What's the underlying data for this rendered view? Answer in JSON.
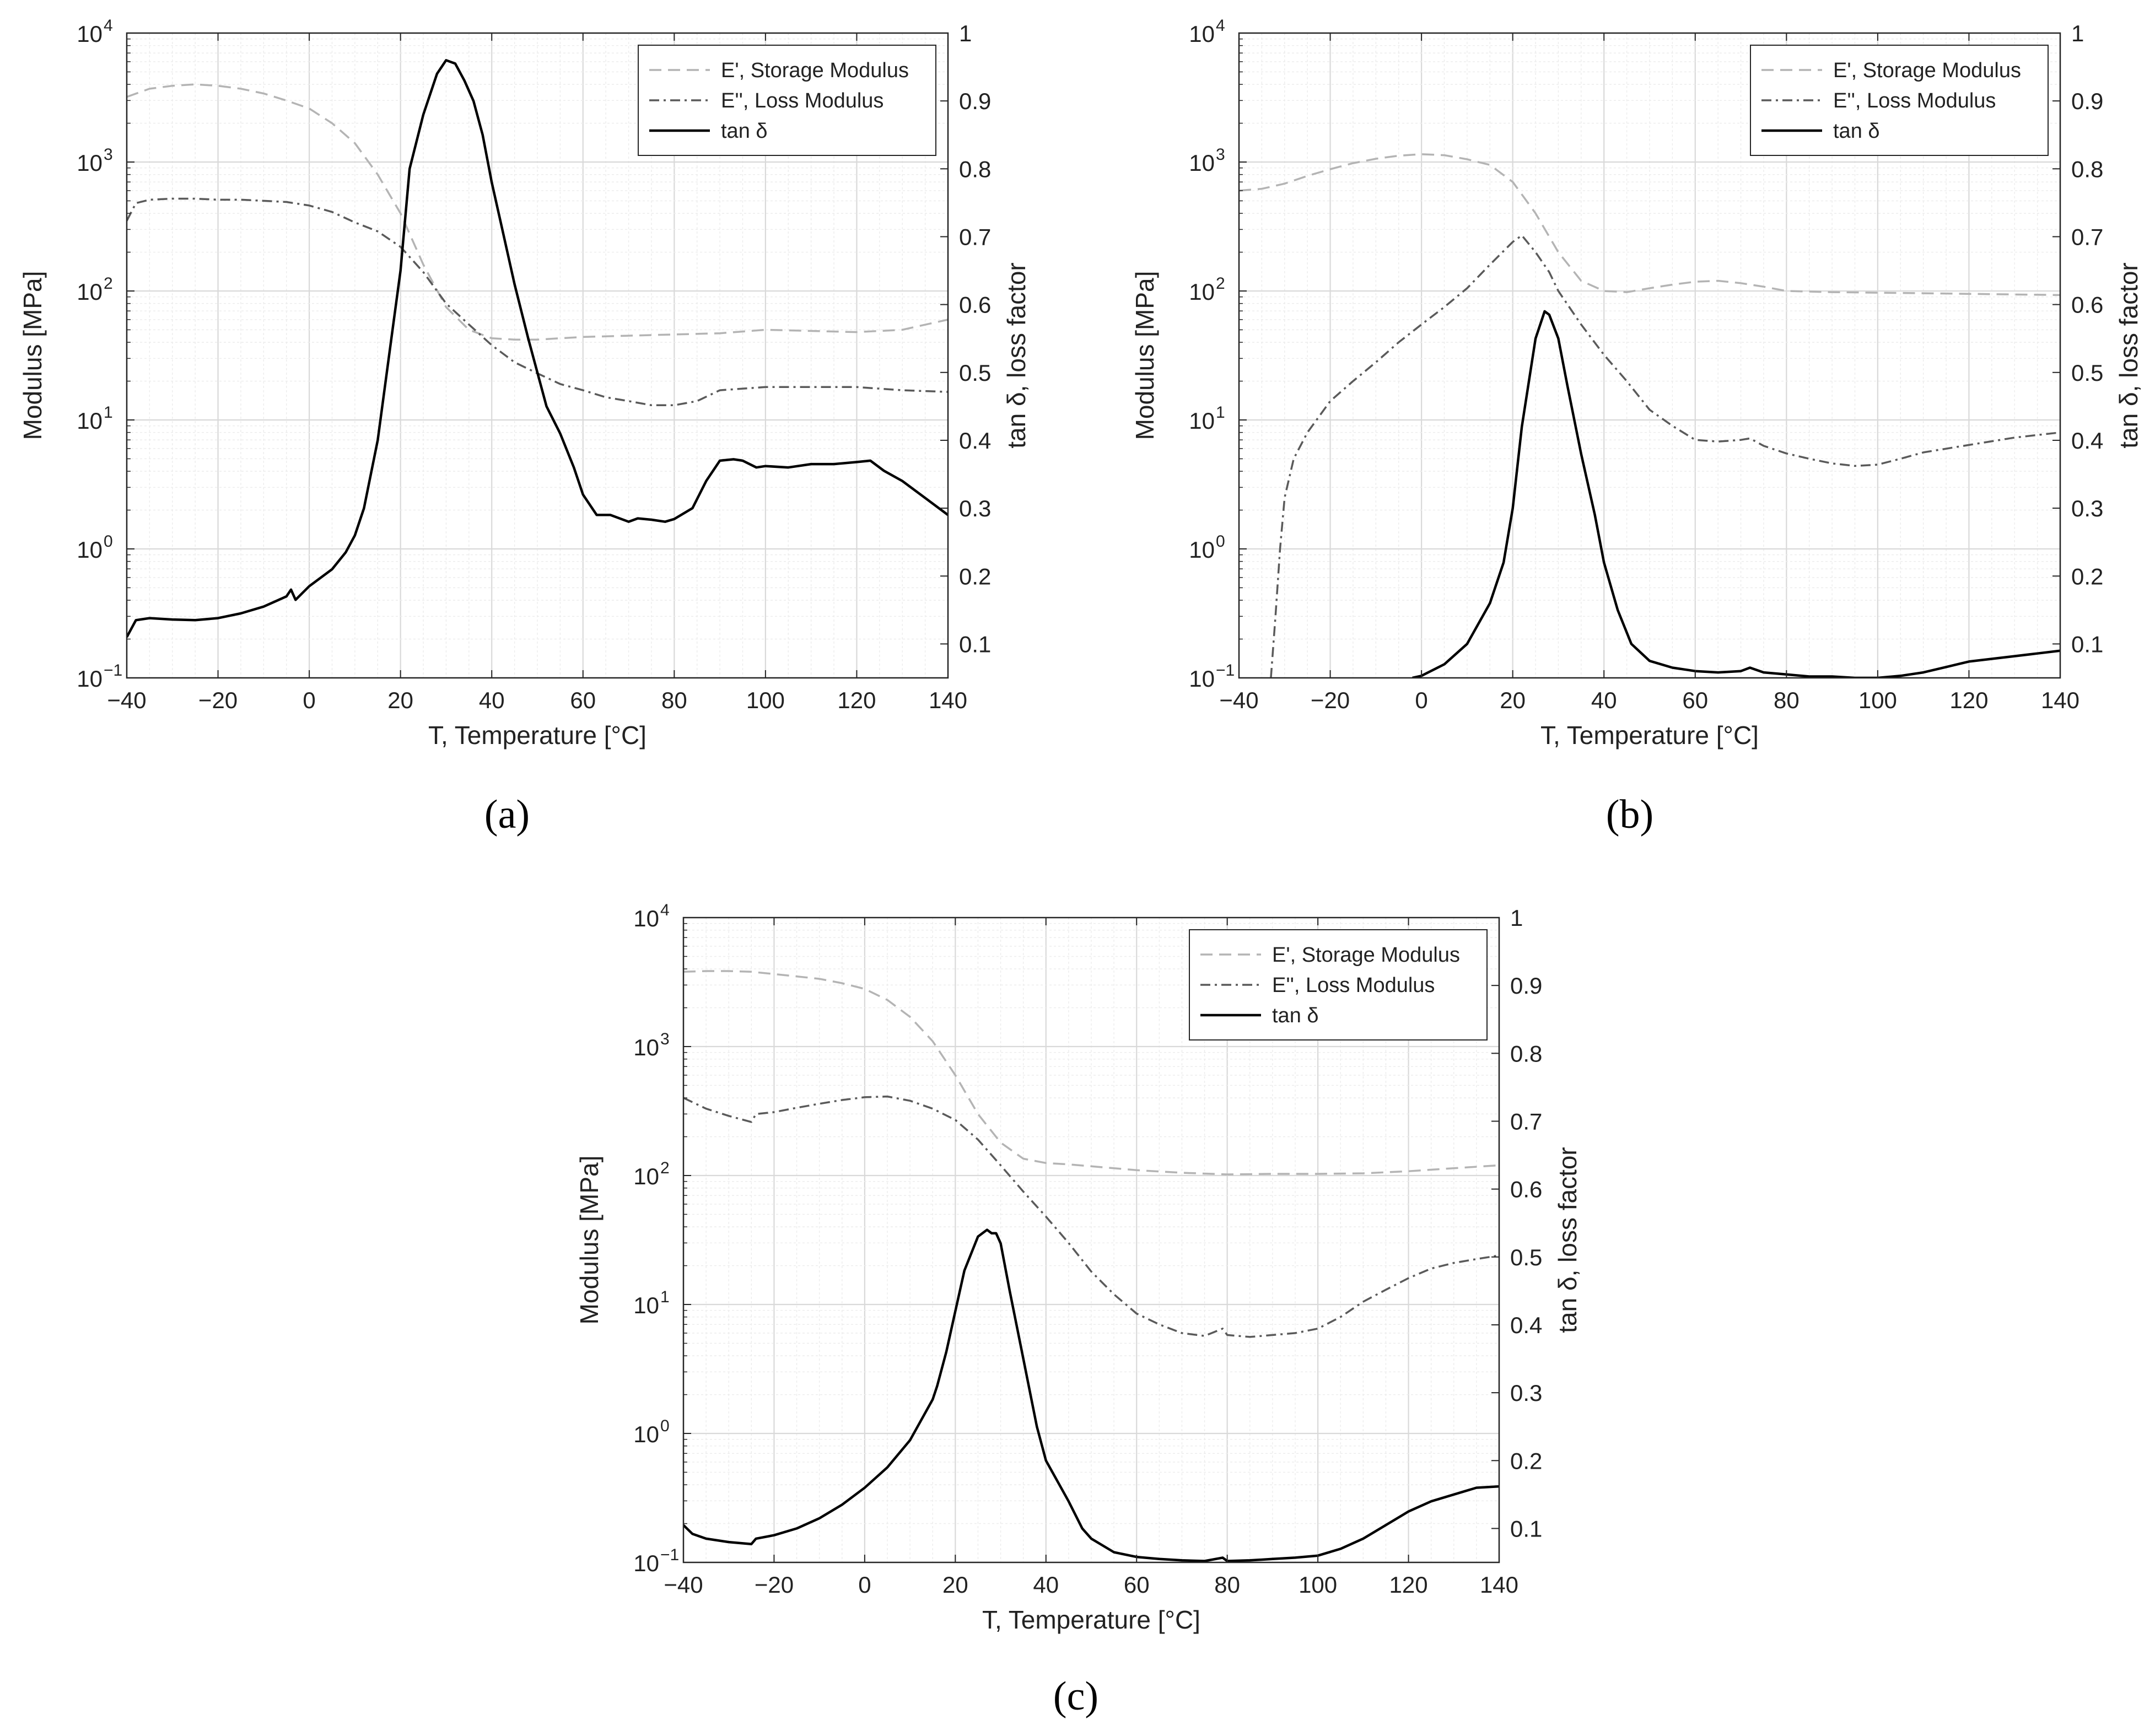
{
  "figure": {
    "subfigure_labels": [
      "(a)",
      "(b)",
      "(c)"
    ]
  },
  "colors": {
    "storage": "#b4b4b4",
    "loss": "#5a5a5a",
    "tan": "#000000",
    "grid_major": "#d9d9d9",
    "grid_minor": "#ececec",
    "axis": "#262626"
  },
  "chart_data": [
    {
      "id": "a",
      "type": "line",
      "label": "(a)",
      "xlabel": "T, Temperature [°C]",
      "ylabel": "Modulus [MPa]",
      "y2label": "tan δ, loss factor",
      "xlim": [
        -40,
        140
      ],
      "ylim": [
        0.1,
        10000
      ],
      "yscale": "log",
      "y2lim": [
        0.05,
        1
      ],
      "xticks": [
        "−40",
        "−20",
        "0",
        "20",
        "40",
        "60",
        "80",
        "100",
        "120",
        "140"
      ],
      "yticks": [
        "10",
        "10",
        "10",
        "10",
        "10",
        "10"
      ],
      "yticks_exp": [
        "−1",
        "0",
        "1",
        "2",
        "3",
        "4"
      ],
      "y2ticks": [
        "0.1",
        "0.2",
        "0.3",
        "0.4",
        "0.5",
        "0.6",
        "0.7",
        "0.8",
        "0.9",
        "1"
      ],
      "legend": [
        "E', Storage Modulus",
        "E'', Loss Modulus",
        "tan δ"
      ],
      "legend_position": "top-right",
      "grid": true,
      "series": [
        {
          "name": "E', Storage Modulus",
          "axis": "left",
          "style": "dashed",
          "x": [
            -40,
            -35,
            -30,
            -25,
            -20,
            -15,
            -10,
            -5,
            0,
            5,
            10,
            15,
            20,
            25,
            30,
            35,
            40,
            45,
            50,
            60,
            70,
            80,
            90,
            100,
            110,
            120,
            130,
            140
          ],
          "y": [
            3200,
            3700,
            3900,
            4000,
            3900,
            3700,
            3400,
            3000,
            2600,
            2000,
            1400,
            800,
            400,
            160,
            75,
            50,
            43,
            42,
            42,
            44,
            45,
            46,
            47,
            50,
            49,
            48,
            50,
            60
          ]
        },
        {
          "name": "E'', Loss Modulus",
          "axis": "left",
          "style": "dashdot",
          "x": [
            -40,
            -38,
            -35,
            -30,
            -25,
            -20,
            -15,
            -10,
            -5,
            0,
            5,
            10,
            15,
            20,
            25,
            30,
            35,
            40,
            45,
            50,
            55,
            60,
            65,
            70,
            75,
            80,
            85,
            90,
            100,
            110,
            120,
            130,
            140
          ],
          "y": [
            350,
            480,
            510,
            520,
            520,
            510,
            510,
            500,
            490,
            460,
            410,
            340,
            290,
            220,
            140,
            80,
            55,
            38,
            28,
            23,
            19,
            17,
            15,
            14,
            13,
            13,
            14,
            17,
            18,
            18,
            18,
            17,
            16.5
          ]
        },
        {
          "name": "tan δ",
          "axis": "right",
          "style": "solid",
          "x": [
            -40,
            -38,
            -35,
            -30,
            -25,
            -20,
            -15,
            -10,
            -5,
            -4,
            -3,
            0,
            5,
            8,
            10,
            12,
            15,
            18,
            20,
            22,
            25,
            28,
            30,
            32,
            34,
            36,
            38,
            40,
            42,
            45,
            48,
            50,
            52,
            55,
            58,
            60,
            63,
            66,
            70,
            72,
            75,
            78,
            80,
            84,
            87,
            90,
            93,
            95,
            98,
            100,
            105,
            110,
            115,
            120,
            123,
            126,
            130,
            135,
            140
          ],
          "y": [
            0.11,
            0.135,
            0.138,
            0.136,
            0.135,
            0.138,
            0.145,
            0.155,
            0.17,
            0.18,
            0.165,
            0.185,
            0.21,
            0.235,
            0.26,
            0.3,
            0.4,
            0.55,
            0.65,
            0.8,
            0.88,
            0.94,
            0.96,
            0.955,
            0.93,
            0.9,
            0.85,
            0.78,
            0.72,
            0.63,
            0.55,
            0.5,
            0.45,
            0.41,
            0.36,
            0.32,
            0.29,
            0.29,
            0.28,
            0.285,
            0.283,
            0.28,
            0.284,
            0.3,
            0.34,
            0.37,
            0.372,
            0.37,
            0.36,
            0.362,
            0.36,
            0.365,
            0.365,
            0.368,
            0.37,
            0.355,
            0.34,
            0.315,
            0.29
          ]
        }
      ]
    },
    {
      "id": "b",
      "type": "line",
      "label": "(b)",
      "xlabel": "T, Temperature [°C]",
      "ylabel": "Modulus [MPa]",
      "y2label": "tan δ, loss factor",
      "xlim": [
        -40,
        140
      ],
      "ylim": [
        0.1,
        10000
      ],
      "yscale": "log",
      "y2lim": [
        0.05,
        1
      ],
      "xticks": [
        "−40",
        "−20",
        "0",
        "20",
        "40",
        "60",
        "80",
        "100",
        "120",
        "140"
      ],
      "yticks": [
        "10",
        "10",
        "10",
        "10",
        "10",
        "10"
      ],
      "yticks_exp": [
        "−1",
        "0",
        "1",
        "2",
        "3",
        "4"
      ],
      "y2ticks": [
        "0.1",
        "0.2",
        "0.3",
        "0.4",
        "0.5",
        "0.6",
        "0.7",
        "0.8",
        "0.9",
        "1"
      ],
      "legend": [
        "E', Storage Modulus",
        "E'', Loss Modulus",
        "tan δ"
      ],
      "legend_position": "top-right",
      "grid": true,
      "series": [
        {
          "name": "E', Storage Modulus",
          "axis": "left",
          "style": "dashed",
          "x": [
            -40,
            -35,
            -30,
            -25,
            -20,
            -15,
            -10,
            -5,
            0,
            5,
            10,
            15,
            20,
            25,
            30,
            35,
            40,
            45,
            50,
            55,
            60,
            65,
            70,
            75,
            80,
            90,
            100,
            110,
            120,
            130,
            140
          ],
          "y": [
            600,
            620,
            680,
            780,
            880,
            980,
            1060,
            1120,
            1150,
            1130,
            1050,
            950,
            700,
            400,
            200,
            120,
            100,
            98,
            105,
            112,
            118,
            120,
            115,
            108,
            100,
            98,
            97,
            96,
            95,
            94,
            93
          ]
        },
        {
          "name": "E'', Loss Modulus",
          "axis": "left",
          "style": "dashdot",
          "x": [
            -33,
            -32,
            -31,
            -30,
            -28,
            -25,
            -20,
            -15,
            -10,
            -5,
            0,
            5,
            10,
            15,
            20,
            22,
            25,
            28,
            30,
            35,
            40,
            45,
            50,
            55,
            60,
            65,
            70,
            72,
            75,
            80,
            85,
            90,
            95,
            100,
            105,
            110,
            120,
            130,
            140
          ],
          "y": [
            0.1,
            0.3,
            1,
            2.5,
            5,
            8,
            14,
            20,
            28,
            40,
            55,
            75,
            105,
            160,
            240,
            270,
            200,
            140,
            100,
            55,
            32,
            20,
            12,
            9,
            7,
            6.8,
            7,
            7.2,
            6.3,
            5.5,
            5,
            4.6,
            4.4,
            4.5,
            5,
            5.6,
            6.4,
            7.3,
            8
          ]
        },
        {
          "name": "tan δ",
          "axis": "right",
          "style": "solid",
          "x": [
            -2,
            0,
            5,
            10,
            15,
            18,
            20,
            22,
            25,
            27,
            28,
            30,
            32,
            35,
            38,
            40,
            43,
            46,
            50,
            55,
            60,
            65,
            70,
            72,
            75,
            80,
            85,
            90,
            95,
            100,
            105,
            110,
            115,
            120,
            125,
            130,
            135,
            140
          ],
          "y": [
            0.05,
            0.053,
            0.07,
            0.1,
            0.16,
            0.22,
            0.3,
            0.42,
            0.55,
            0.59,
            0.585,
            0.55,
            0.48,
            0.38,
            0.29,
            0.22,
            0.15,
            0.1,
            0.075,
            0.065,
            0.06,
            0.058,
            0.06,
            0.065,
            0.058,
            0.055,
            0.052,
            0.052,
            0.05,
            0.05,
            0.053,
            0.058,
            0.066,
            0.074,
            0.078,
            0.082,
            0.086,
            0.09
          ]
        }
      ]
    },
    {
      "id": "c",
      "type": "line",
      "label": "(c)",
      "xlabel": "T, Temperature [°C]",
      "ylabel": "Modulus [MPa]",
      "y2label": "tan δ, loss factor",
      "xlim": [
        -40,
        140
      ],
      "ylim": [
        0.1,
        10000
      ],
      "yscale": "log",
      "y2lim": [
        0.05,
        1
      ],
      "xticks": [
        "−40",
        "−20",
        "0",
        "20",
        "40",
        "60",
        "80",
        "100",
        "120",
        "140"
      ],
      "yticks": [
        "10",
        "10",
        "10",
        "10",
        "10",
        "10"
      ],
      "yticks_exp": [
        "−1",
        "0",
        "1",
        "2",
        "3",
        "4"
      ],
      "y2ticks": [
        "0.1",
        "0.2",
        "0.3",
        "0.4",
        "0.5",
        "0.6",
        "0.7",
        "0.8",
        "0.9",
        "1"
      ],
      "legend": [
        "E', Storage Modulus",
        "E'', Loss Modulus",
        "tan δ"
      ],
      "legend_position": "top-right",
      "grid": true,
      "series": [
        {
          "name": "E', Storage Modulus",
          "axis": "left",
          "style": "dashed",
          "x": [
            -40,
            -35,
            -30,
            -25,
            -20,
            -15,
            -10,
            -5,
            0,
            5,
            10,
            15,
            20,
            25,
            30,
            35,
            40,
            45,
            50,
            60,
            70,
            80,
            90,
            100,
            110,
            120,
            130,
            140
          ],
          "y": [
            3800,
            3850,
            3850,
            3800,
            3650,
            3500,
            3350,
            3100,
            2800,
            2300,
            1700,
            1100,
            600,
            300,
            180,
            135,
            125,
            122,
            118,
            110,
            105,
            102,
            103,
            103,
            104,
            108,
            114,
            120
          ]
        },
        {
          "name": "E'', Loss Modulus",
          "axis": "left",
          "style": "dashdot",
          "x": [
            -40,
            -35,
            -30,
            -25,
            -24,
            -20,
            -15,
            -10,
            -5,
            0,
            5,
            10,
            15,
            20,
            25,
            30,
            35,
            40,
            45,
            50,
            55,
            60,
            65,
            70,
            75,
            79,
            80,
            85,
            90,
            95,
            100,
            105,
            110,
            115,
            120,
            125,
            130,
            135,
            140
          ],
          "y": [
            400,
            330,
            290,
            260,
            300,
            310,
            335,
            360,
            385,
            405,
            410,
            380,
            330,
            270,
            190,
            120,
            75,
            48,
            30,
            18,
            12,
            8.5,
            7,
            6,
            5.7,
            6.5,
            5.8,
            5.6,
            5.8,
            6,
            6.5,
            8,
            10.5,
            13,
            16,
            19,
            21,
            22.5,
            24
          ]
        },
        {
          "name": "tan δ",
          "axis": "right",
          "style": "solid",
          "x": [
            -40,
            -38,
            -35,
            -30,
            -25,
            -24,
            -20,
            -15,
            -10,
            -5,
            0,
            5,
            10,
            15,
            16,
            18,
            20,
            22,
            25,
            27,
            28,
            29,
            30,
            32,
            35,
            38,
            40,
            45,
            48,
            50,
            55,
            60,
            65,
            70,
            75,
            79,
            80,
            85,
            90,
            95,
            100,
            105,
            110,
            115,
            120,
            125,
            130,
            135,
            140
          ],
          "y": [
            0.105,
            0.092,
            0.085,
            0.08,
            0.077,
            0.085,
            0.09,
            0.1,
            0.115,
            0.135,
            0.16,
            0.19,
            0.23,
            0.29,
            0.31,
            0.36,
            0.42,
            0.48,
            0.53,
            0.54,
            0.535,
            0.535,
            0.52,
            0.45,
            0.35,
            0.25,
            0.2,
            0.14,
            0.1,
            0.085,
            0.065,
            0.058,
            0.055,
            0.053,
            0.052,
            0.057,
            0.052,
            0.053,
            0.055,
            0.057,
            0.06,
            0.07,
            0.085,
            0.105,
            0.125,
            0.14,
            0.15,
            0.16,
            0.162
          ]
        }
      ]
    }
  ]
}
